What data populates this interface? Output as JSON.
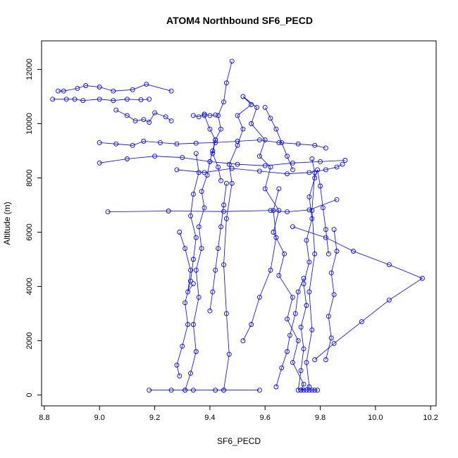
{
  "chart_data": {
    "type": "line",
    "title": "ATOM4 Northbound SF6_PECD",
    "xlabel": "SF6_PECD",
    "ylabel": "Altitude (m)",
    "xlim": [
      8.79,
      10.22
    ],
    "ylim": [
      -400,
      13050
    ],
    "x_ticks": [
      8.8,
      9.0,
      9.2,
      9.4,
      9.6,
      9.8,
      10.0,
      10.2
    ],
    "y_ticks": [
      0,
      2000,
      4000,
      6000,
      8000,
      10000,
      12000
    ],
    "x_tick_labels": [
      "8.8",
      "9.0",
      "9.2",
      "9.4",
      "9.6",
      "9.8",
      "10.0",
      "10.2"
    ],
    "y_tick_labels": [
      "0",
      "2000",
      "4000",
      "6000",
      "8000",
      "10000",
      "12000"
    ],
    "grid": false,
    "legend": "none",
    "series_color": "#0000ff",
    "marker": "open-circle",
    "series": [
      {
        "x": [
          9.45,
          9.47,
          9.46,
          9.45,
          9.46,
          9.48,
          9.47,
          9.5,
          9.52,
          9.5,
          9.55,
          9.52,
          9.57,
          9.55,
          9.6,
          9.58,
          9.62,
          9.6,
          9.65,
          9.63,
          9.67,
          9.65,
          9.7,
          9.68,
          9.72,
          9.7,
          9.74,
          9.73,
          9.76,
          9.75,
          9.77,
          9.76,
          9.78,
          9.77,
          9.78,
          9.77
        ],
        "y": [
          180,
          1500,
          3000,
          4800,
          6500,
          7800,
          8500,
          9200,
          9800,
          10300,
          10700,
          11000,
          10600,
          10000,
          9400,
          8800,
          8400,
          7600,
          6800,
          6000,
          5200,
          4400,
          3600,
          2800,
          2000,
          1200,
          400,
          180,
          300,
          1200,
          2400,
          3800,
          5200,
          6800,
          8200,
          8700
        ]
      },
      {
        "x": [
          9.31,
          9.33,
          9.35,
          9.34,
          9.36,
          9.35,
          9.37,
          9.36,
          9.38,
          9.37,
          9.39,
          9.4,
          9.41,
          9.42,
          9.44,
          9.43,
          9.45,
          9.46,
          9.48
        ],
        "y": [
          180,
          800,
          1600,
          2600,
          3600,
          4600,
          5400,
          6200,
          6900,
          7500,
          8100,
          8600,
          9000,
          9400,
          9800,
          10300,
          10800,
          11500,
          12300
        ]
      },
      {
        "x": [
          9.29,
          9.28,
          9.3,
          9.32,
          9.31,
          9.33,
          9.34,
          9.35,
          9.33,
          9.34,
          9.36,
          9.35
        ],
        "y": [
          700,
          1100,
          1800,
          2600,
          3400,
          4200,
          5000,
          5800,
          6600,
          7400,
          8200,
          8900
        ]
      },
      {
        "x": [
          9.72,
          9.73,
          9.74,
          9.73,
          9.75,
          9.74,
          9.76,
          9.75,
          9.77,
          9.76,
          9.78,
          9.79,
          9.8,
          9.81,
          9.82,
          9.83
        ],
        "y": [
          180,
          900,
          1700,
          2500,
          3300,
          4100,
          4900,
          5700,
          6500,
          7300,
          8000,
          8300,
          7700,
          6900,
          6100,
          5200
        ]
      },
      {
        "x": [
          9.18,
          9.26,
          9.31,
          9.34,
          9.42,
          9.45,
          9.58
        ],
        "y": [
          180,
          180,
          180,
          180,
          180,
          180,
          180
        ]
      },
      {
        "x": [
          9.73,
          9.74,
          9.75,
          9.76,
          9.77,
          9.78,
          9.79
        ],
        "y": [
          180,
          180,
          180,
          180,
          180,
          180,
          180
        ]
      },
      {
        "x": [
          8.83,
          8.88,
          8.91,
          8.94,
          9.0,
          9.05,
          9.1,
          9.15,
          9.18
        ],
        "y": [
          10900,
          10900,
          10900,
          10850,
          10900,
          10850,
          10900,
          10880,
          10900
        ]
      },
      {
        "x": [
          8.85,
          8.87,
          8.92,
          8.95,
          9.0,
          9.05,
          9.12,
          9.17,
          9.26
        ],
        "y": [
          11200,
          11200,
          11300,
          11400,
          11350,
          11200,
          11250,
          11450,
          11200
        ]
      },
      {
        "x": [
          9.06,
          9.1,
          9.13,
          9.16,
          9.18,
          9.2,
          9.24,
          9.26
        ],
        "y": [
          10500,
          10300,
          10100,
          10150,
          10050,
          10400,
          10250,
          10100
        ]
      },
      {
        "x": [
          9.0,
          9.06,
          9.12,
          9.16,
          9.22,
          9.28,
          9.35,
          9.42,
          9.5,
          9.58,
          9.65,
          9.72,
          9.78,
          9.82
        ],
        "y": [
          9300,
          9250,
          9200,
          9350,
          9300,
          9250,
          9280,
          9300,
          9350,
          9400,
          9300,
          9250,
          9200,
          9100
        ]
      },
      {
        "x": [
          9.0,
          9.1,
          9.2,
          9.3,
          9.4,
          9.5,
          9.6,
          9.7,
          9.8,
          9.89
        ],
        "y": [
          8550,
          8700,
          8800,
          8750,
          8600,
          8500,
          8450,
          8550,
          8600,
          8650
        ]
      },
      {
        "x": [
          9.28,
          9.38,
          9.48,
          9.58,
          9.68,
          9.76,
          9.82,
          9.86,
          9.88
        ],
        "y": [
          8300,
          8200,
          8350,
          8250,
          8150,
          8200,
          8300,
          8400,
          8500
        ]
      },
      {
        "x": [
          9.03,
          9.25,
          9.45,
          9.62,
          9.68,
          9.76,
          9.86
        ],
        "y": [
          6750,
          6780,
          6760,
          6800,
          6750,
          6820,
          7200
        ]
      },
      {
        "x": [
          9.29,
          9.31,
          9.33,
          9.32,
          9.34
        ],
        "y": [
          6000,
          5400,
          4600,
          3800,
          4100
        ]
      },
      {
        "x": [
          9.7,
          9.82,
          9.92,
          10.05,
          10.17,
          10.05,
          9.95,
          9.85,
          9.78
        ],
        "y": [
          6200,
          5800,
          5300,
          4800,
          4300,
          3500,
          2700,
          1900,
          1300
        ]
      },
      {
        "x": [
          9.52,
          9.55,
          9.58,
          9.62,
          9.64,
          9.63,
          9.65
        ],
        "y": [
          2000,
          2600,
          3600,
          4600,
          5800,
          6800,
          7600
        ]
      },
      {
        "x": [
          9.64,
          9.66,
          9.68,
          9.69,
          9.71,
          9.72,
          9.74
        ],
        "y": [
          300,
          1000,
          1600,
          2200,
          3000,
          3800,
          4300
        ]
      },
      {
        "x": [
          9.4,
          9.41,
          9.42,
          9.43,
          9.44,
          9.45,
          9.46
        ],
        "y": [
          3100,
          3800,
          4600,
          5400,
          6200,
          7000,
          7800
        ]
      },
      {
        "x": [
          9.82,
          9.84,
          9.83,
          9.85,
          9.84,
          9.86,
          9.85
        ],
        "y": [
          1300,
          2100,
          2900,
          3700,
          4500,
          5300,
          6100
        ]
      },
      {
        "x": [
          9.38,
          9.4,
          9.42,
          9.41,
          9.43,
          9.44
        ],
        "y": [
          10300,
          9800,
          9400,
          8900,
          8400,
          7900
        ]
      },
      {
        "x": [
          9.6,
          9.62,
          9.64,
          9.66,
          9.68,
          9.7
        ],
        "y": [
          10600,
          10200,
          9800,
          9300,
          8800,
          8300
        ]
      },
      {
        "x": [
          9.34,
          9.36,
          9.38,
          9.4,
          9.42
        ],
        "y": [
          10300,
          10250,
          10350,
          10300,
          10320
        ]
      }
    ]
  }
}
